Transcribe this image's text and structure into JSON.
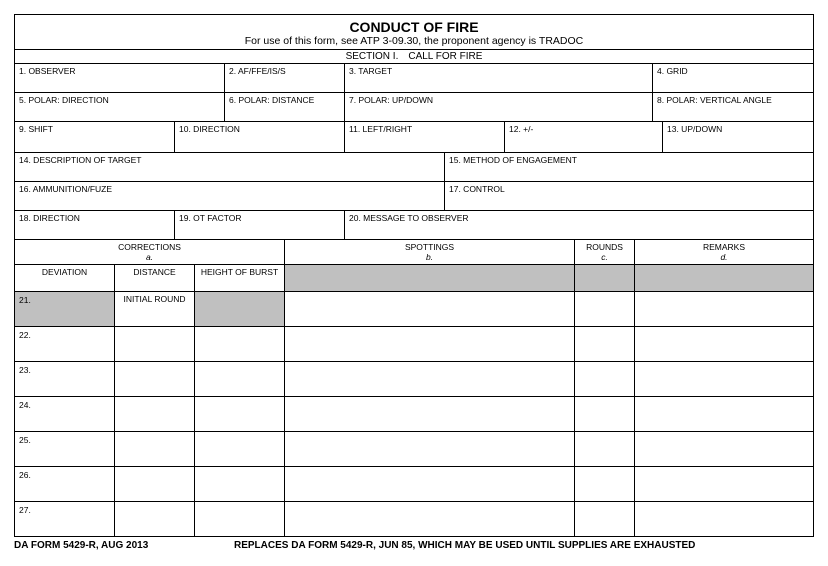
{
  "header": {
    "title": "CONDUCT OF FIRE",
    "subtitle": "For use of this form, see ATP 3-09.30, the proponent agency is TRADOC",
    "section": "SECTION I. CALL FOR FIRE"
  },
  "row1": {
    "c1": "1. OBSERVER",
    "c2": "2. AF/FFE/IS/S",
    "c3": "3. TARGET",
    "c4": "4. GRID"
  },
  "row2": {
    "c1": "5. POLAR: DIRECTION",
    "c2": "6. POLAR: DISTANCE",
    "c3": "7. POLAR: UP/DOWN",
    "c4": "8. POLAR: VERTICAL ANGLE"
  },
  "row3": {
    "c1": "9. SHIFT",
    "c2": "10. DIRECTION",
    "c3": "11. LEFT/RIGHT",
    "c4": "12. +/-",
    "c5": "13. UP/DOWN"
  },
  "row4": {
    "c1": "14. DESCRIPTION OF TARGET",
    "c2": "15. METHOD OF ENGAGEMENT"
  },
  "row5": {
    "c1": "16. AMMUNITION/FUZE",
    "c2": "17. CONTROL"
  },
  "row6": {
    "c1": "18. DIRECTION",
    "c2": "19. OT FACTOR",
    "c3": "20. MESSAGE TO OBSERVER"
  },
  "colhdr": {
    "corrections": "CORRECTIONS",
    "corrections_sub": "a.",
    "spottings": "SPOTTINGS",
    "spottings_sub": "b.",
    "rounds": "ROUNDS",
    "rounds_sub": "c.",
    "remarks": "REMARKS",
    "remarks_sub": "d."
  },
  "subhdr": {
    "deviation": "DEVIATION",
    "distance": "DISTANCE",
    "hob": "HEIGHT OF BURST"
  },
  "rows": [
    {
      "num": "21.",
      "distance": "INITIAL ROUND",
      "grey_num": true,
      "grey_hob": true
    },
    {
      "num": "22."
    },
    {
      "num": "23."
    },
    {
      "num": "24."
    },
    {
      "num": "25."
    },
    {
      "num": "26."
    },
    {
      "num": "27."
    }
  ],
  "colwidths": {
    "deviation": 100,
    "distance": 80,
    "hob": 90,
    "spottings": 290,
    "rounds": 60,
    "remarks": 180
  },
  "footer": {
    "left": "DA FORM 5429-R, AUG 2013",
    "right": "REPLACES DA FORM 5429-R, JUN 85, WHICH MAY BE USED UNTIL SUPPLIES ARE EXHAUSTED"
  }
}
